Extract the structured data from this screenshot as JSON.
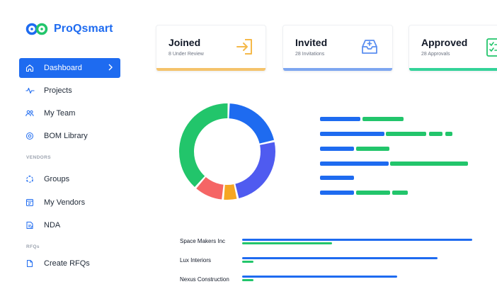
{
  "app": {
    "name": "ProQsmart",
    "brand_color": "#1e6bf0"
  },
  "sidebar": {
    "items": [
      {
        "label": "Dashboard",
        "icon": "home-icon",
        "active": true
      },
      {
        "label": "Projects",
        "icon": "pulse-icon"
      },
      {
        "label": "My Team",
        "icon": "users-icon"
      },
      {
        "label": "BOM Library",
        "icon": "library-icon"
      }
    ],
    "vendors_section": "VENDORS",
    "vendor_items": [
      {
        "label": "Groups",
        "icon": "groups-icon"
      },
      {
        "label": "My Vendors",
        "icon": "vendors-icon"
      },
      {
        "label": "NDA",
        "icon": "nda-icon"
      }
    ],
    "rfqs_section": "RFQs",
    "rfq_items": [
      {
        "label": "Create RFQs",
        "icon": "document-icon"
      }
    ]
  },
  "cards": [
    {
      "title": "Joined",
      "subtitle": "8 Under Review",
      "color": "#f5c36b",
      "icon": "login-icon"
    },
    {
      "title": "Invited",
      "subtitle": "28 Invitations",
      "color": "#7ea6f0",
      "icon": "inbox-add-icon"
    },
    {
      "title": "Approved",
      "subtitle": "28 Approvals",
      "color": "#34d399",
      "icon": "checklist-icon"
    }
  ],
  "donut": {
    "segments": [
      {
        "name": "blue",
        "value": 21,
        "color": "#1e6bf0"
      },
      {
        "name": "indigo",
        "value": 25,
        "color": "#4f5bf0"
      },
      {
        "name": "orange",
        "value": 5,
        "color": "#f5a623"
      },
      {
        "name": "red",
        "value": 10,
        "color": "#f56565"
      },
      {
        "name": "green",
        "value": 39,
        "color": "#22c56b"
      }
    ]
  },
  "vendors": [
    {
      "name": "Space Makers Inc"
    },
    {
      "name": "Lux Interiors"
    },
    {
      "name": "Nexus Construction"
    }
  ]
}
